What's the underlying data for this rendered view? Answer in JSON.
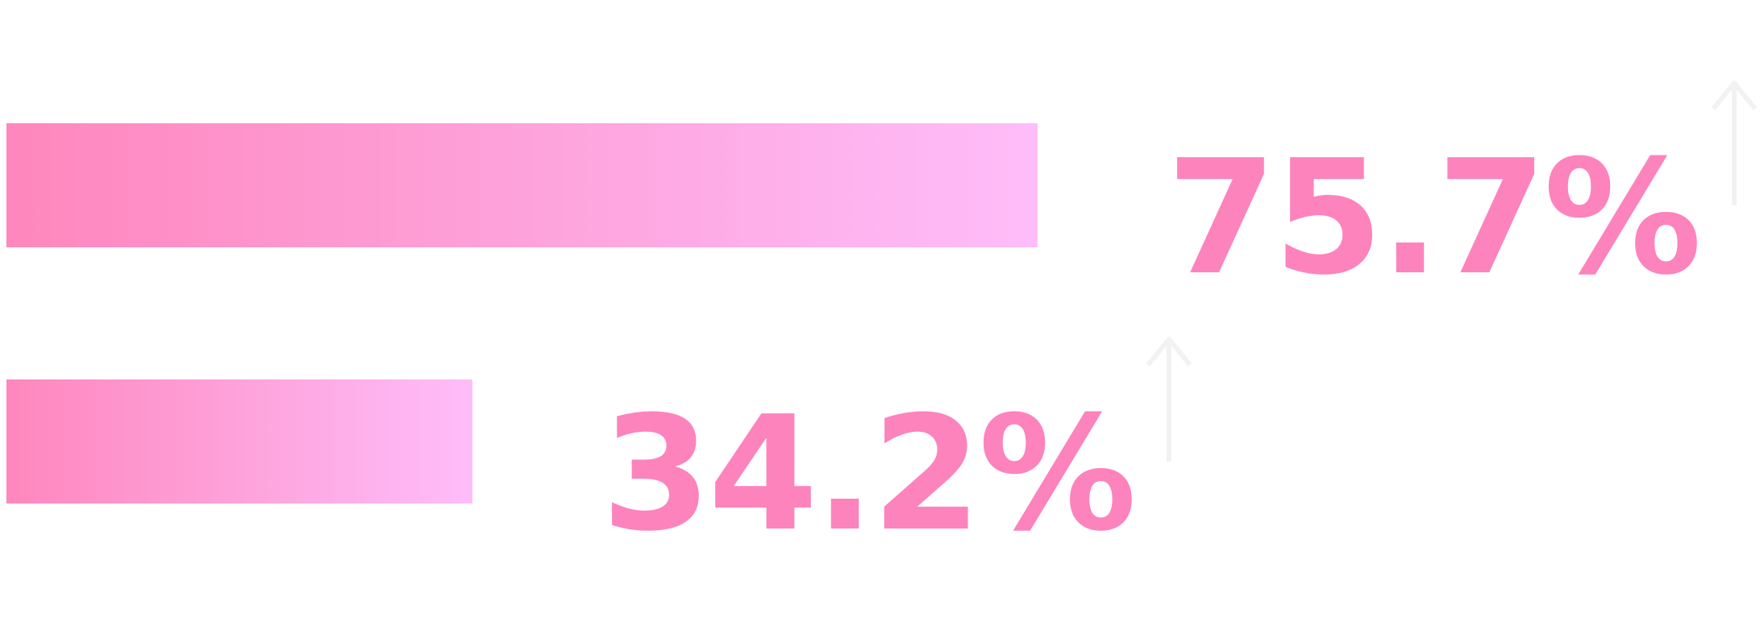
{
  "chart_data": {
    "type": "bar",
    "orientation": "horizontal",
    "series": [
      {
        "values": [
          75.7,
          34.2
        ]
      }
    ],
    "value_labels": [
      "75.7%",
      "34.2%"
    ],
    "trend": [
      "up",
      "up"
    ],
    "xlim": [
      0,
      100
    ],
    "grid": false,
    "legend": "none"
  },
  "colors": {
    "bar_start": "#fe87bd",
    "bar_end": "#febdf9",
    "label": "#fd83bd",
    "arrow": "#f2f2f2"
  },
  "icons": [
    "up-arrow-icon",
    "up-arrow-icon"
  ]
}
